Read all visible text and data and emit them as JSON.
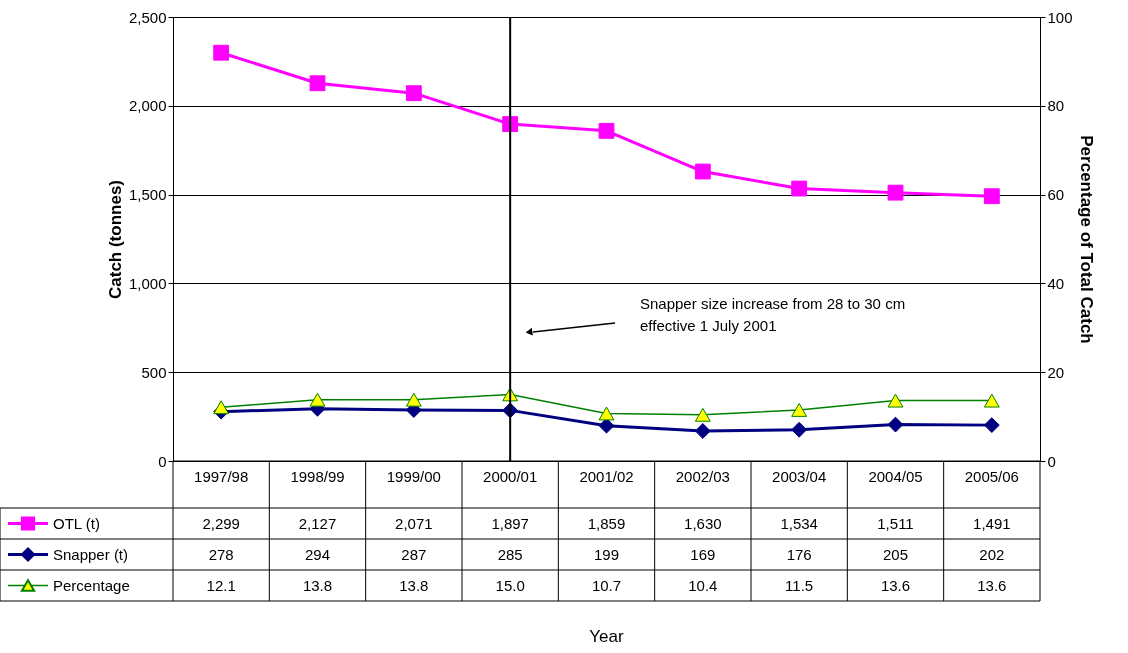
{
  "chart_data": {
    "type": "line",
    "ylabel": "Catch (tonnes)",
    "y2label": "Percentage of Total Catch",
    "categories": [
      "1997/98",
      "1998/99",
      "1999/00",
      "2000/01",
      "2001/02",
      "2002/03",
      "2003/04",
      "2004/05",
      "2005/06"
    ],
    "series": [
      {
        "name": "OTL (t)",
        "color": "#ff00ff",
        "marker": "square",
        "values": [
          2299,
          2127,
          2071,
          1897,
          1859,
          1630,
          1534,
          1511,
          1491
        ],
        "value_labels": [
          "2,299",
          "2,127",
          "2,071",
          "1,897",
          "1,859",
          "1,630",
          "1,534",
          "1,511",
          "1,491"
        ]
      },
      {
        "name": "Snapper (t)",
        "color": "#000080",
        "marker": "diamond",
        "values": [
          278,
          294,
          287,
          285,
          199,
          169,
          176,
          205,
          202
        ],
        "value_labels": [
          "278",
          "294",
          "287",
          "285",
          "199",
          "169",
          "176",
          "205",
          "202"
        ]
      },
      {
        "name": "Percentage",
        "color": "#008000",
        "marker": "triangle",
        "axis": "y2",
        "values": [
          12.1,
          13.8,
          13.8,
          15.0,
          10.7,
          10.4,
          11.5,
          13.6,
          13.6
        ],
        "value_labels": [
          "12.1",
          "13.8",
          "13.8",
          "15.0",
          "10.7",
          "10.4",
          "11.5",
          "13.6",
          "13.6"
        ]
      }
    ],
    "ylim": [
      0,
      2500
    ],
    "yticks": [
      0,
      500,
      {
        "value": 1000,
        "label": "1,000"
      },
      {
        "value": 1500,
        "label": "1,500"
      },
      {
        "value": 2000,
        "label": "2,000"
      },
      {
        "value": 2500,
        "label": "2,500"
      }
    ],
    "y2lim": [
      0,
      100
    ],
    "y2ticks": [
      0,
      20,
      40,
      60,
      80,
      100
    ],
    "ref_lines": [
      {
        "axis": "x",
        "value": "2000/01",
        "color": "#000000"
      }
    ],
    "annotations": [
      "Snapper size increase from 28 to 30 cm\neffective 1 July 2001",
      "Year"
    ],
    "grid": "y",
    "legend": "bottom"
  }
}
